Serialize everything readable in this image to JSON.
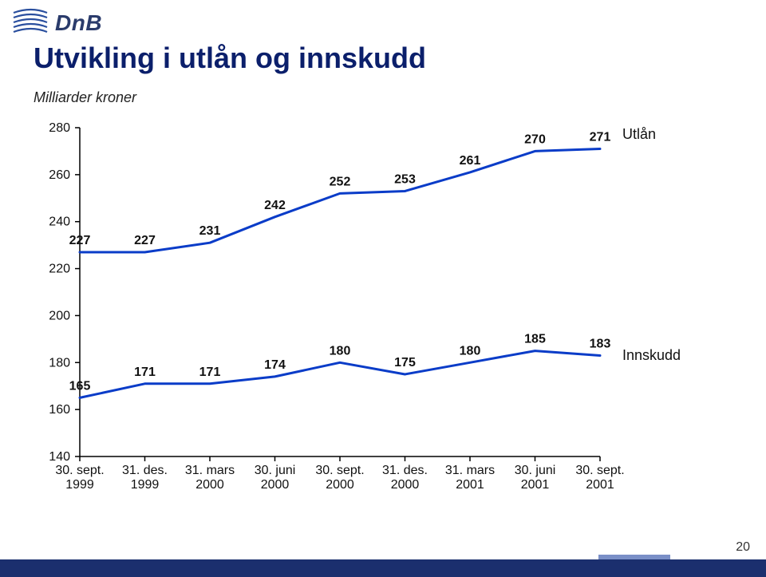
{
  "brand_text": "DnB",
  "title": "Utvikling i utlån og innskudd",
  "subtitle": "Milliarder kroner",
  "page_number": "20",
  "chart": {
    "type": "line",
    "background_color": "#ffffff",
    "axis_color": "#000000",
    "tick_color": "#000000",
    "grid_on": false,
    "label_fontsize": 16,
    "value_fontsize": 16,
    "line_width": 3,
    "marker_style": "none",
    "ylim": [
      140,
      280
    ],
    "ytick_step": 20,
    "yticks": [
      140,
      160,
      180,
      200,
      220,
      240,
      260,
      280
    ],
    "categories": [
      "30. sept.\n1999",
      "31. des.\n1999",
      "31. mars\n2000",
      "30. juni\n2000",
      "30. sept.\n2000",
      "31. des.\n2000",
      "31. mars\n2001",
      "30. juni\n2001",
      "30. sept.\n2001"
    ],
    "series": [
      {
        "name": "Utlån",
        "color": "#0a3cc8",
        "values": [
          227,
          227,
          231,
          242,
          252,
          253,
          261,
          270,
          271
        ]
      },
      {
        "name": "Innskudd",
        "color": "#0a3cc8",
        "values": [
          165,
          171,
          171,
          174,
          180,
          175,
          180,
          185,
          183
        ]
      }
    ]
  },
  "colors": {
    "title_color": "#0b1f6b",
    "footer_color": "#1b2f6e",
    "logo_stripe_color": "#2a4f9e"
  }
}
